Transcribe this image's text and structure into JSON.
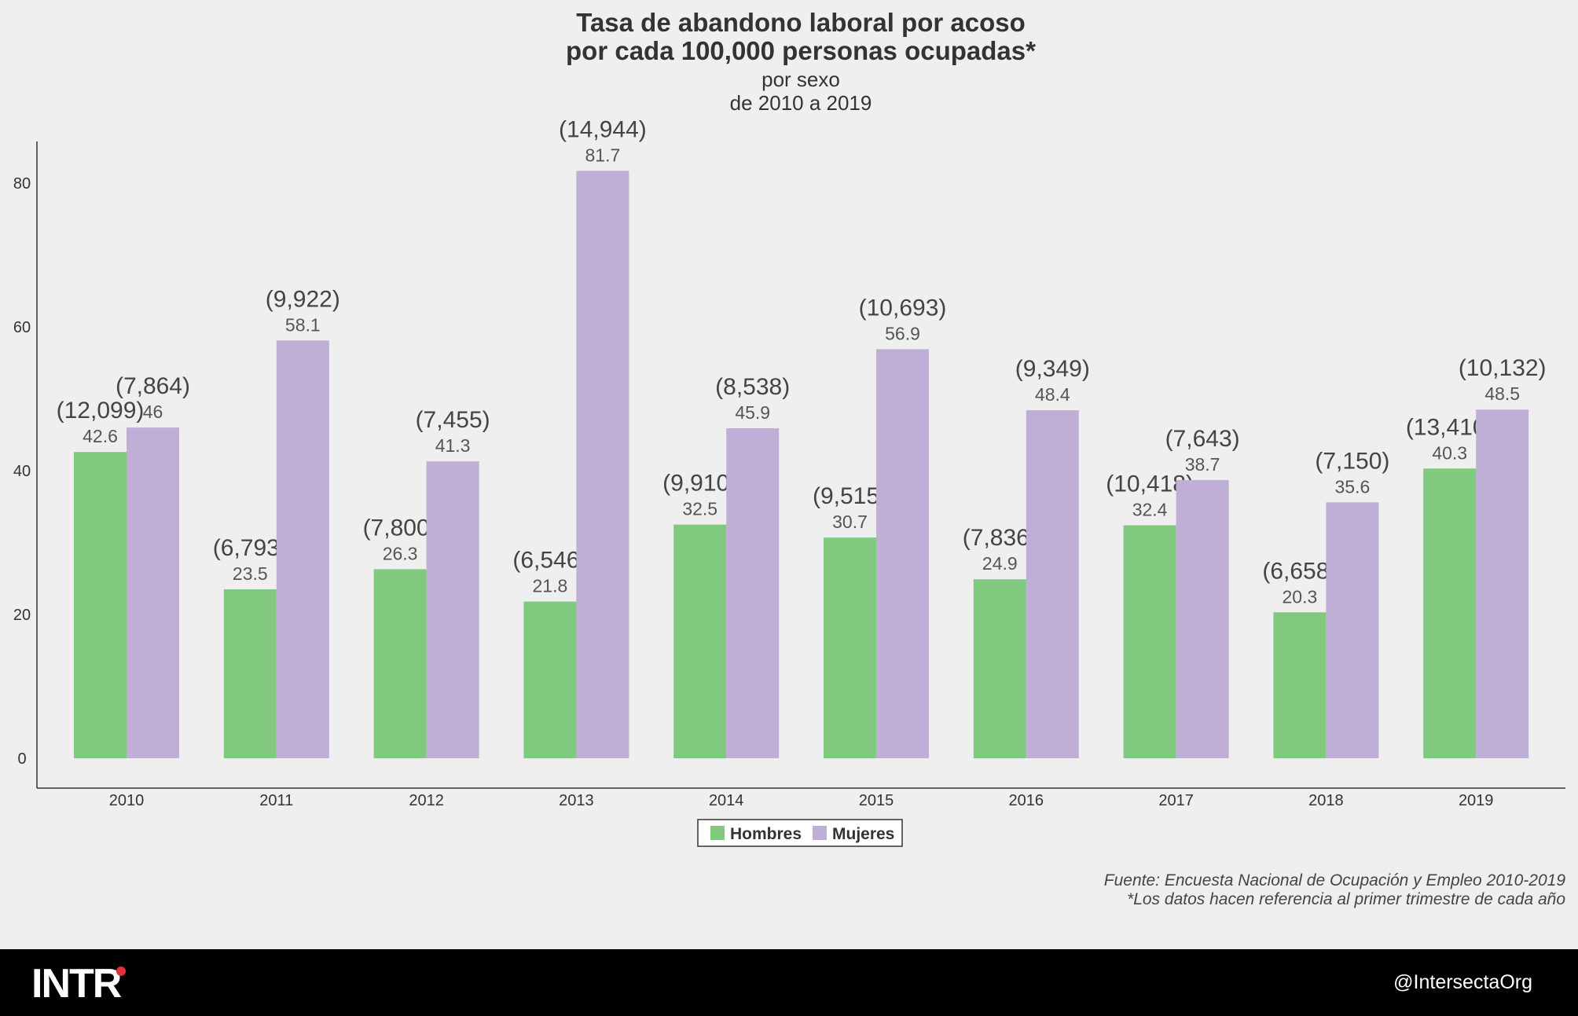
{
  "chart_data": {
    "type": "bar",
    "title_line1": "Tasa de abandono laboral por acoso",
    "title_line2": "por cada 100,000 personas ocupadas*",
    "subtitle_line1": "por sexo",
    "subtitle_line2": "de 2010 a 2019",
    "categories": [
      "2010",
      "2011",
      "2012",
      "2013",
      "2014",
      "2015",
      "2016",
      "2017",
      "2018",
      "2019"
    ],
    "ylim": [
      0,
      85
    ],
    "yticks": [
      "0",
      "20",
      "40",
      "60",
      "80"
    ],
    "grid": false,
    "legend_position": "bottom-center",
    "series": [
      {
        "name": "Hombres",
        "color": "#80c97f",
        "values": [
          42.6,
          23.5,
          26.3,
          21.8,
          32.5,
          30.7,
          24.9,
          32.4,
          20.3,
          40.3
        ],
        "value_labels": [
          "42.6",
          "23.5",
          "26.3",
          "21.8",
          "32.5",
          "30.7",
          "24.9",
          "32.4",
          "20.3",
          "40.3"
        ],
        "count_labels": [
          "(12,099)",
          "(6,793)",
          "(7,800)",
          "(6,546)",
          "(9,910)",
          "(9,515)",
          "(7,836)",
          "(10,418)",
          "(6,658)",
          "(13,410)"
        ]
      },
      {
        "name": "Mujeres",
        "color": "#bfafd6",
        "values": [
          46,
          58.1,
          41.3,
          81.7,
          45.9,
          56.9,
          48.4,
          38.7,
          35.6,
          48.5
        ],
        "value_labels": [
          "46",
          "58.1",
          "41.3",
          "81.7",
          "45.9",
          "56.9",
          "48.4",
          "38.7",
          "35.6",
          "48.5"
        ],
        "count_labels": [
          "(7,864)",
          "(9,922)",
          "(7,455)",
          "(14,944)",
          "(8,538)",
          "(10,693)",
          "(9,349)",
          "(7,643)",
          "(7,150)",
          "(10,132)"
        ]
      }
    ],
    "source_line1": "Fuente: Encuesta Nacional de Ocupación y Empleo 2010-2019",
    "source_line2": "*Los datos hacen referencia al primer trimestre de cada año"
  },
  "footer": {
    "logo_text": "INTR",
    "logo_dot_color": "#e0303a",
    "handle": "@IntersectaOrg"
  }
}
